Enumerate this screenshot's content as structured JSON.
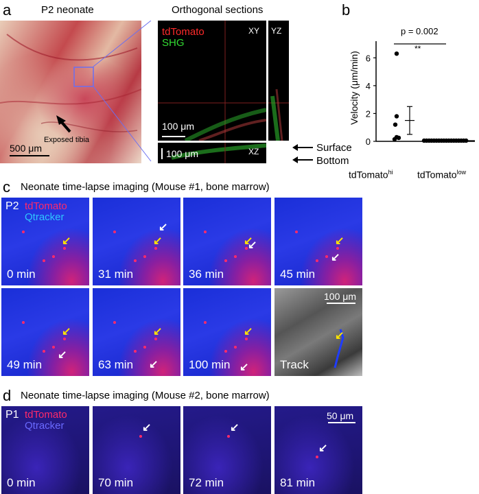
{
  "panel_a": {
    "label": "a",
    "photo_title": "P2 neonate",
    "sections_title": "Orthogonal sections",
    "photo_scale": "500 μm",
    "photo_annotation": "Exposed tibia",
    "legend_red": "tdTomato",
    "legend_green": "SHG",
    "view_xy": "XY",
    "view_yz": "YZ",
    "view_xz": "XZ",
    "scale_xy": "100 μm",
    "scale_xz": "100 μm",
    "surface": "Surface",
    "bottom": "Bottom"
  },
  "panel_b": {
    "label": "b",
    "p_value": "p = 0.002",
    "stars": "**",
    "ylabel": "Velocity (μm/min)",
    "xcat1_main": "tdTomato",
    "xcat1_sup": "hi",
    "xcat2_main": "tdTomato",
    "xcat2_sup": "low",
    "yticks": [
      "0",
      "2",
      "4",
      "6"
    ]
  },
  "chart_data": {
    "type": "scatter",
    "categories": [
      "tdTomato hi",
      "tdTomato low"
    ],
    "ylabel": "Velocity (μm/min)",
    "ylim": [
      0,
      7
    ],
    "series": [
      {
        "values_hi": [
          6.3,
          1.8,
          1.2,
          0.3,
          0.25,
          0.15
        ]
      },
      {
        "values_low_count": 18,
        "value_low": 0.05
      }
    ],
    "mean_sem": [
      {
        "mean": 1.5,
        "sem_low": 0.5,
        "sem_high": 2.5
      },
      {
        "mean": 0.05,
        "sem_low": 0.03,
        "sem_high": 0.07
      }
    ]
  },
  "panel_c": {
    "label": "c",
    "title": "Neonate time-lapse imaging (Mouse #1, bone marrow)",
    "age": "P2",
    "legend_red": "tdTomato",
    "legend_blue": "Qtracker",
    "scale": "100 μm",
    "frames": [
      "0 min",
      "31 min",
      "36 min",
      "45 min",
      "49 min",
      "63 min",
      "100 min",
      "Track"
    ]
  },
  "panel_d": {
    "label": "d",
    "title": "Neonate time-lapse imaging (Mouse #2, bone marrow)",
    "age": "P1",
    "legend_red": "tdTomato",
    "legend_blue": "Qtracker",
    "scale": "50 μm",
    "frames": [
      "0 min",
      "70 min",
      "72 min",
      "81 min"
    ]
  },
  "colors": {
    "red": "#ff2a2a",
    "green": "#33dd33",
    "blue_cyan": "#2fc6ff",
    "yellow_arrow": "#ffe600"
  }
}
